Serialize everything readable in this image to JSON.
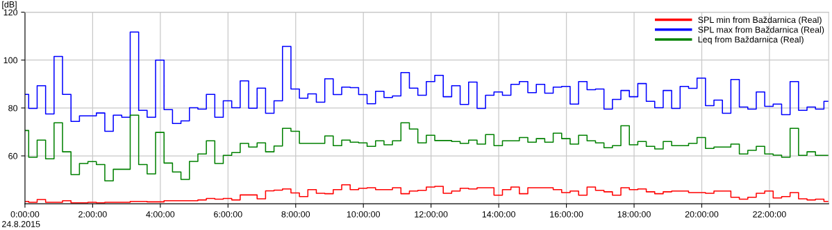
{
  "chart_data": {
    "type": "step",
    "ylabel": "[dB]",
    "annotations": [
      "24.8.2015"
    ],
    "xlim": [
      0,
      23.75
    ],
    "ylim": [
      40,
      120
    ],
    "yticks": [
      60,
      80,
      100,
      120
    ],
    "xticks": [
      {
        "value": 0,
        "label": "0:00:00"
      },
      {
        "value": 2,
        "label": "2:00:00"
      },
      {
        "value": 4,
        "label": "4:00:00"
      },
      {
        "value": 6,
        "label": "6:00:00"
      },
      {
        "value": 8,
        "label": "8:00:00"
      },
      {
        "value": 10,
        "label": "10:00:00"
      },
      {
        "value": 12,
        "label": "12:00:00"
      },
      {
        "value": 14,
        "label": "14:00:00"
      },
      {
        "value": 16,
        "label": "16:00:00"
      },
      {
        "value": 18,
        "label": "18:00:00"
      },
      {
        "value": 20,
        "label": "20:00:00"
      },
      {
        "value": 22,
        "label": "22:00:00"
      }
    ],
    "grid": true,
    "legend": "top right",
    "line_style": "solid",
    "x": [
      0,
      0.11,
      0.36,
      0.61,
      0.86,
      1.11,
      1.36,
      1.61,
      1.86,
      2.11,
      2.36,
      2.61,
      2.86,
      3.11,
      3.36,
      3.61,
      3.86,
      4.11,
      4.36,
      4.61,
      4.86,
      5.11,
      5.36,
      5.61,
      5.86,
      6.11,
      6.36,
      6.61,
      6.86,
      7.11,
      7.36,
      7.61,
      7.86,
      8.11,
      8.36,
      8.61,
      8.86,
      9.11,
      9.36,
      9.61,
      9.86,
      10.11,
      10.36,
      10.61,
      10.86,
      11.11,
      11.36,
      11.61,
      11.86,
      12.11,
      12.36,
      12.61,
      12.86,
      13.11,
      13.36,
      13.61,
      13.86,
      14.11,
      14.36,
      14.61,
      14.86,
      15.11,
      15.36,
      15.61,
      15.86,
      16.11,
      16.36,
      16.61,
      16.86,
      17.11,
      17.36,
      17.61,
      17.86,
      18.11,
      18.36,
      18.61,
      18.86,
      19.11,
      19.36,
      19.61,
      19.86,
      20.11,
      20.36,
      20.61,
      20.86,
      21.11,
      21.36,
      21.61,
      21.86,
      22.11,
      22.36,
      22.61,
      22.86,
      23.11,
      23.36,
      23.61,
      23.75
    ],
    "series": [
      {
        "name": "SPL min from Baždarnica (Real)",
        "color": "#ff0000",
        "values": [
          41.0,
          40.6,
          41.8,
          40.6,
          40.6,
          41.3,
          40.4,
          40.4,
          40.6,
          40.4,
          40.6,
          40.6,
          40.6,
          41.0,
          41.0,
          40.8,
          40.8,
          41.3,
          41.3,
          41.3,
          41.3,
          41.6,
          42.2,
          41.9,
          42.2,
          41.6,
          43.7,
          43.7,
          42.1,
          45.4,
          45.7,
          46.2,
          44.5,
          43.0,
          45.9,
          44.4,
          44.2,
          45.9,
          47.9,
          45.9,
          46.5,
          46.7,
          45.9,
          45.9,
          46.7,
          44.2,
          45.3,
          45.6,
          47.0,
          47.3,
          44.4,
          45.3,
          46.5,
          46.2,
          46.7,
          46.7,
          43.6,
          45.9,
          47.0,
          44.2,
          46.7,
          46.7,
          46.7,
          45.9,
          44.7,
          45.3,
          43.6,
          47.0,
          45.6,
          45.0,
          43.6,
          46.7,
          45.9,
          46.2,
          45.0,
          44.2,
          45.0,
          45.3,
          45.3,
          44.7,
          44.7,
          44.4,
          45.3,
          45.3,
          42.7,
          41.9,
          42.7,
          44.4,
          45.3,
          42.4,
          43.0,
          44.7,
          42.1,
          41.6,
          41.9,
          41.0,
          41.0
        ]
      },
      {
        "name": "SPL max from Baždarnica (Real)",
        "color": "#0000ff",
        "values": [
          85.7,
          79.8,
          89.3,
          77.5,
          101.5,
          85.7,
          74.4,
          76.7,
          76.7,
          77.9,
          70.3,
          77.0,
          76.1,
          111.7,
          79.0,
          76.1,
          100.0,
          79.3,
          73.5,
          74.6,
          80.1,
          79.5,
          85.7,
          76.1,
          83.0,
          80.1,
          91.3,
          79.9,
          88.3,
          77.8,
          83.0,
          105.7,
          87.9,
          84.1,
          85.9,
          82.4,
          92.2,
          85.6,
          88.7,
          88.5,
          85.6,
          81.8,
          87.0,
          84.4,
          85.0,
          94.8,
          88.3,
          85.3,
          91.0,
          93.6,
          84.7,
          89.3,
          81.5,
          90.8,
          79.8,
          85.3,
          86.7,
          85.3,
          89.9,
          91.0,
          86.4,
          89.9,
          86.2,
          88.7,
          89.0,
          81.6,
          91.0,
          87.6,
          87.9,
          79.5,
          83.6,
          87.3,
          84.7,
          90.2,
          82.8,
          80.1,
          87.3,
          79.8,
          89.0,
          88.2,
          92.5,
          81.0,
          83.3,
          77.8,
          91.9,
          80.4,
          79.5,
          86.7,
          80.7,
          81.6,
          77.2,
          91.0,
          79.0,
          80.4,
          79.5,
          82.8,
          82.8
        ]
      },
      {
        "name": "Leq from Baždarnica (Real)",
        "color": "#008000",
        "values": [
          70.6,
          59.4,
          66.6,
          58.8,
          73.8,
          61.7,
          52.2,
          56.8,
          57.6,
          56.4,
          49.6,
          54.4,
          54.4,
          77.0,
          56.4,
          52.5,
          69.8,
          57.0,
          53.3,
          50.2,
          57.7,
          60.8,
          66.3,
          56.8,
          60.2,
          61.4,
          65.2,
          63.7,
          65.4,
          61.7,
          64.1,
          71.5,
          70.3,
          65.2,
          65.2,
          65.2,
          68.3,
          64.3,
          66.6,
          65.7,
          65.4,
          64.0,
          66.3,
          64.6,
          66.3,
          73.8,
          71.2,
          65.4,
          68.6,
          66.4,
          66.4,
          66.0,
          65.2,
          66.6,
          64.9,
          68.9,
          64.3,
          66.3,
          66.3,
          67.7,
          65.7,
          67.2,
          65.7,
          69.5,
          67.2,
          64.9,
          68.6,
          66.3,
          65.4,
          63.4,
          64.3,
          72.6,
          64.6,
          66.0,
          64.0,
          62.9,
          66.0,
          64.3,
          64.3,
          65.2,
          67.7,
          63.1,
          63.7,
          63.7,
          64.9,
          60.8,
          62.3,
          64.0,
          60.8,
          60.3,
          59.4,
          71.5,
          60.2,
          61.7,
          60.2,
          60.2,
          60.2
        ]
      }
    ]
  }
}
